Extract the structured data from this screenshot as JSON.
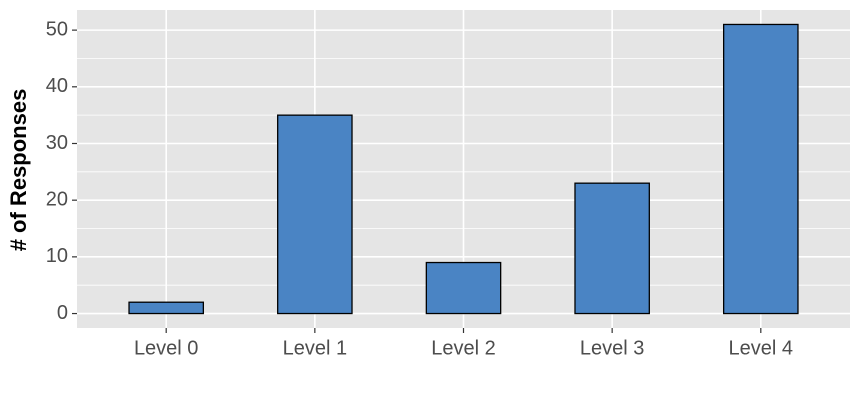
{
  "chart_data": {
    "type": "bar",
    "y_label": "# of Responses",
    "categories": [
      "Level 0",
      "Level 1",
      "Level 2",
      "Level 3",
      "Level 4"
    ],
    "values": [
      2,
      35,
      9,
      23,
      51
    ],
    "color": "#4a84c4",
    "ylim": [
      -2.55,
      53.55
    ],
    "yticks": [
      0,
      10,
      20,
      30,
      40,
      50
    ],
    "grid": true
  }
}
